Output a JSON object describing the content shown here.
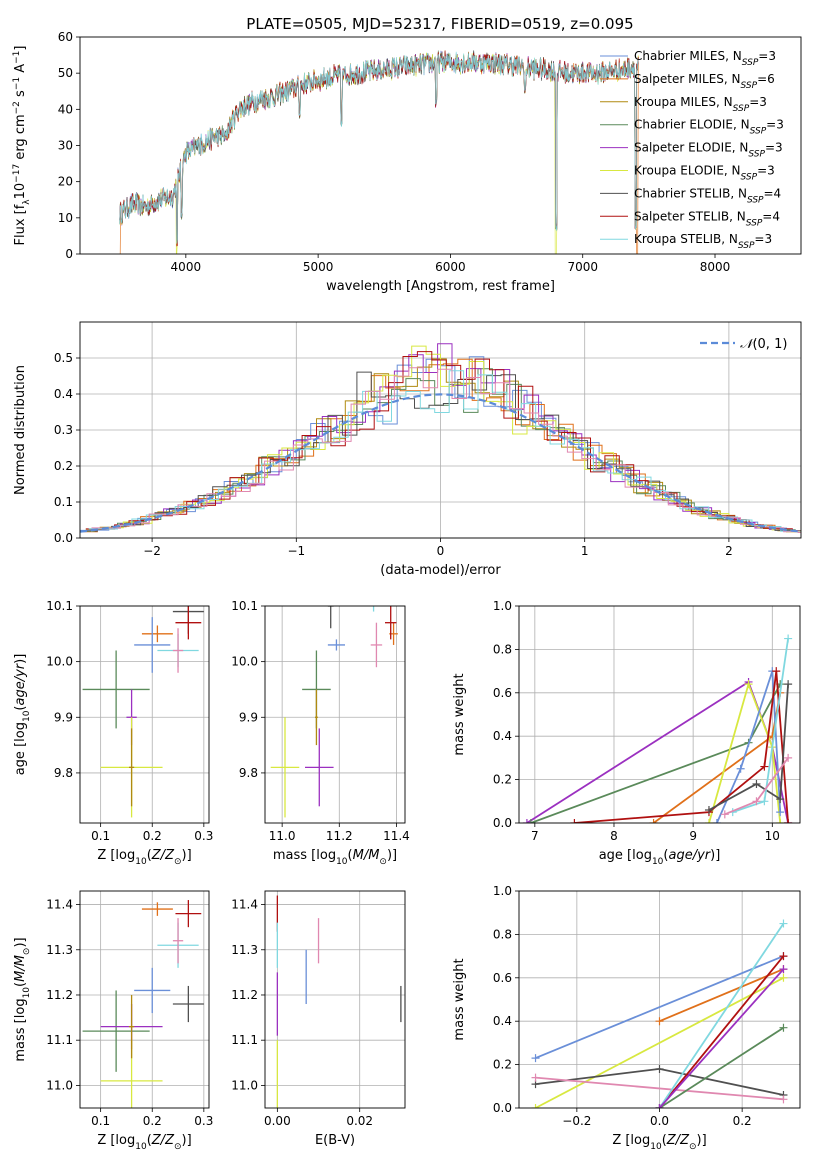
{
  "figure_title": "PLATE=0505, MJD=52317, FIBERID=0519, z=0.095",
  "colors": {
    "Chabrier MILES": "#6a8fd8",
    "Salpeter MILES": "#e0701a",
    "Kroupa MILES": "#b08a10",
    "Chabrier ELODIE": "#5a8a5a",
    "Salpeter ELODIE": "#9b30c0",
    "Kroupa ELODIE": "#d8e840",
    "Chabrier STELIB": "#505050",
    "Salpeter STELIB": "#b01010",
    "Kroupa STELIB": "#80d8e0",
    "pink": "#e088b0",
    "normal": "#5b8bd8"
  },
  "chart_data": [
    {
      "type": "line",
      "id": "spectrum",
      "xlabel": "wavelength [Angstrom, rest frame]",
      "ylabel": "Flux [f_λ 10^-17 erg cm^-2 s^-1 A^-1]",
      "xlim": [
        3200,
        8650
      ],
      "ylim": [
        0,
        60
      ],
      "xticks": [
        4000,
        5000,
        6000,
        7000,
        8000
      ],
      "yticks": [
        0,
        10,
        20,
        30,
        40,
        50,
        60
      ],
      "grid": false,
      "legend_position": "top-right",
      "legend": [
        "Chabrier MILES, N_SSP=3",
        "Salpeter MILES, N_SSP=6",
        "Kroupa MILES, N_SSP=3",
        "Chabrier ELODIE, N_SSP=3",
        "Salpeter ELODIE, N_SSP=3",
        "Kroupa ELODIE, N_SSP=3",
        "Chabrier STELIB, N_SSP=4",
        "Salpeter STELIB, N_SSP=4",
        "Kroupa STELIB, N_SSP=3"
      ],
      "continuum": [
        [
          3500,
          11
        ],
        [
          3600,
          14
        ],
        [
          3700,
          13
        ],
        [
          3800,
          15
        ],
        [
          3900,
          16
        ],
        [
          4000,
          28
        ],
        [
          4100,
          30
        ],
        [
          4200,
          32
        ],
        [
          4300,
          33
        ],
        [
          4400,
          40
        ],
        [
          4500,
          42
        ],
        [
          4700,
          44
        ],
        [
          4900,
          47
        ],
        [
          5100,
          49
        ],
        [
          5300,
          50
        ],
        [
          5500,
          51
        ],
        [
          5700,
          52
        ],
        [
          5900,
          53
        ],
        [
          6100,
          53
        ],
        [
          6300,
          53
        ],
        [
          6500,
          52
        ],
        [
          6700,
          51
        ],
        [
          6900,
          50
        ],
        [
          7100,
          50
        ],
        [
          7300,
          51
        ],
        [
          7400,
          52
        ]
      ],
      "dips": [
        [
          3934,
          0
        ],
        [
          3969,
          10
        ],
        [
          4102,
          28
        ],
        [
          4300,
          32
        ],
        [
          4861,
          38
        ],
        [
          5175,
          35
        ],
        [
          5893,
          41
        ],
        [
          6563,
          44
        ],
        [
          6800,
          0
        ],
        [
          7400,
          0
        ]
      ]
    },
    {
      "type": "histogram",
      "id": "residuals",
      "xlabel": "(data-model)/error",
      "ylabel": "Normed distribution",
      "xlim": [
        -2.5,
        2.5
      ],
      "ylim": [
        0,
        0.6
      ],
      "xticks": [
        -2,
        -1,
        0,
        1,
        2
      ],
      "yticks": [
        0.0,
        0.1,
        0.2,
        0.3,
        0.4,
        0.5
      ],
      "grid": true,
      "legend_position": "top-right",
      "legend": [
        "N(0,1)"
      ],
      "bin_width": 0.1
    },
    {
      "type": "scatter",
      "id": "age_vs_Z",
      "xlabel": "Z [log10(Z/Z⊙)]",
      "ylabel": "age  [log10(age/yr)]",
      "xlim": [
        0.06,
        0.31
      ],
      "ylim": [
        9.71,
        10.1
      ],
      "xticks": [
        0.1,
        0.2,
        0.3
      ],
      "yticks": [
        9.8,
        9.9,
        10.0,
        10.1
      ],
      "points": [
        {
          "c": "Salpeter MILES",
          "x": 0.21,
          "y": 10.05,
          "ex": 0.03,
          "ey": 0.015
        },
        {
          "c": "Kroupa STELIB",
          "x": 0.25,
          "y": 10.02,
          "ex": 0.04,
          "ey": 0.03
        },
        {
          "c": "Chabrier STELIB",
          "x": 0.27,
          "y": 10.09,
          "ex": 0.03,
          "ey": 0.04
        },
        {
          "c": "Salpeter STELIB",
          "x": 0.27,
          "y": 10.07,
          "ex": 0.025,
          "ey": 0.03
        },
        {
          "c": "pink",
          "x": 0.25,
          "y": 10.02,
          "ex": 0.01,
          "ey": 0.04
        },
        {
          "c": "Chabrier MILES",
          "x": 0.2,
          "y": 10.03,
          "ex": 0.035,
          "ey": 0.05
        },
        {
          "c": "Chabrier ELODIE",
          "x": 0.13,
          "y": 9.95,
          "ex": 0.065,
          "ey": 0.07
        },
        {
          "c": "Salpeter ELODIE",
          "x": 0.16,
          "y": 9.9,
          "ex": 0.01,
          "ey": 0.05
        },
        {
          "c": "Kroupa ELODIE",
          "x": 0.16,
          "y": 9.81,
          "ex": 0.06,
          "ey": 0.09
        },
        {
          "c": "Kroupa MILES",
          "x": 0.16,
          "y": 9.81,
          "ex": 0.005,
          "ey": 0.07
        }
      ]
    },
    {
      "type": "scatter",
      "id": "age_vs_mass",
      "xlabel": "mass [log10(M/M⊙)]",
      "ylabel": "",
      "xlim": [
        10.94,
        11.43
      ],
      "ylim": [
        9.71,
        10.1
      ],
      "xticks": [
        11.0,
        11.2,
        11.4
      ],
      "yticks": [
        9.8,
        9.9,
        10.0,
        10.1
      ],
      "points": [
        {
          "c": "Salpeter MILES",
          "x": 11.39,
          "y": 10.05,
          "ex": 0.015,
          "ey": 0.02
        },
        {
          "c": "Kroupa STELIB",
          "x": 11.32,
          "y": 10.12,
          "ex": 0.03,
          "ey": 0.03
        },
        {
          "c": "Chabrier STELIB",
          "x": 11.17,
          "y": 10.1,
          "ex": 0.01,
          "ey": 0.04
        },
        {
          "c": "Salpeter STELIB",
          "x": 11.38,
          "y": 10.07,
          "ex": 0.02,
          "ey": 0.03
        },
        {
          "c": "pink",
          "x": 11.33,
          "y": 10.03,
          "ex": 0.02,
          "ey": 0.04
        },
        {
          "c": "Chabrier MILES",
          "x": 11.19,
          "y": 10.03,
          "ex": 0.03,
          "ey": 0.01
        },
        {
          "c": "Chabrier ELODIE",
          "x": 11.12,
          "y": 9.95,
          "ex": 0.05,
          "ey": 0.07
        },
        {
          "c": "Salpeter ELODIE",
          "x": 11.13,
          "y": 9.81,
          "ex": 0.05,
          "ey": 0.07
        },
        {
          "c": "Kroupa ELODIE",
          "x": 11.01,
          "y": 9.81,
          "ex": 0.05,
          "ey": 0.09
        },
        {
          "c": "Kroupa MILES",
          "x": 11.12,
          "y": 9.9,
          "ex": 0.005,
          "ey": 0.05
        }
      ]
    },
    {
      "type": "line",
      "id": "weight_vs_age",
      "xlabel": "age  [log10(age/yr)]",
      "ylabel": "mass weight",
      "xlim": [
        6.8,
        10.35
      ],
      "ylim": [
        0,
        1
      ],
      "xticks": [
        7,
        8,
        9,
        10
      ],
      "yticks": [
        0.0,
        0.2,
        0.4,
        0.6,
        0.8,
        1.0
      ],
      "grid": true,
      "series": [
        {
          "c": "Salpeter ELODIE",
          "x": [
            6.9,
            9.7,
            10.0,
            10.2
          ],
          "y": [
            0.0,
            0.65,
            0.35,
            0.0
          ]
        },
        {
          "c": "Chabrier ELODIE",
          "x": [
            6.95,
            9.7,
            10.1
          ],
          "y": [
            0.0,
            0.37,
            0.64
          ]
        },
        {
          "c": "Salpeter MILES",
          "x": [
            8.5,
            10.0,
            10.1
          ],
          "y": [
            0.0,
            0.4,
            0.6
          ]
        },
        {
          "c": "Kroupa ELODIE",
          "x": [
            9.2,
            9.7,
            10.0,
            10.1
          ],
          "y": [
            0.0,
            0.64,
            0.35,
            0.0
          ]
        },
        {
          "c": "Chabrier MILES",
          "x": [
            9.3,
            9.6,
            10.0,
            10.1
          ],
          "y": [
            0.0,
            0.25,
            0.7,
            0.05
          ]
        },
        {
          "c": "Salpeter STELIB",
          "x": [
            7.5,
            9.2,
            9.9,
            10.05,
            10.2
          ],
          "y": [
            0.0,
            0.05,
            0.26,
            0.7,
            0.0
          ]
        },
        {
          "c": "Chabrier STELIB",
          "x": [
            9.2,
            9.8,
            10.1,
            10.2
          ],
          "y": [
            0.06,
            0.18,
            0.11,
            0.64
          ]
        },
        {
          "c": "Kroupa STELIB",
          "x": [
            9.5,
            9.9,
            10.2
          ],
          "y": [
            0.05,
            0.1,
            0.85
          ]
        },
        {
          "c": "pink",
          "x": [
            9.4,
            9.8,
            10.2
          ],
          "y": [
            0.04,
            0.1,
            0.3
          ]
        }
      ]
    },
    {
      "type": "scatter",
      "id": "mass_vs_Z",
      "xlabel": "Z [log10(Z/Z⊙)]",
      "ylabel": "mass [log10(M/M⊙)]",
      "xlim": [
        0.06,
        0.31
      ],
      "ylim": [
        10.95,
        11.43
      ],
      "xticks": [
        0.1,
        0.2,
        0.3
      ],
      "yticks": [
        11.0,
        11.1,
        11.2,
        11.3,
        11.4
      ],
      "points": [
        {
          "c": "Salpeter MILES",
          "x": 0.21,
          "y": 11.39,
          "ex": 0.03,
          "ey": 0.015
        },
        {
          "c": "Salpeter STELIB",
          "x": 0.27,
          "y": 11.38,
          "ex": 0.025,
          "ey": 0.03
        },
        {
          "c": "Kroupa STELIB",
          "x": 0.25,
          "y": 11.31,
          "ex": 0.04,
          "ey": 0.05
        },
        {
          "c": "pink",
          "x": 0.25,
          "y": 11.32,
          "ex": 0.01,
          "ey": 0.05
        },
        {
          "c": "Chabrier MILES",
          "x": 0.2,
          "y": 11.21,
          "ex": 0.035,
          "ey": 0.05
        },
        {
          "c": "Chabrier STELIB",
          "x": 0.27,
          "y": 11.18,
          "ex": 0.03,
          "ey": 0.04
        },
        {
          "c": "Chabrier ELODIE",
          "x": 0.13,
          "y": 11.12,
          "ex": 0.065,
          "ey": 0.09
        },
        {
          "c": "Salpeter ELODIE",
          "x": 0.16,
          "y": 11.13,
          "ex": 0.06,
          "ey": 0.05
        },
        {
          "c": "Kroupa ELODIE",
          "x": 0.16,
          "y": 11.01,
          "ex": 0.06,
          "ey": 0.09
        },
        {
          "c": "Kroupa MILES",
          "x": 0.16,
          "y": 11.13,
          "ex": 0.005,
          "ey": 0.07
        }
      ]
    },
    {
      "type": "scatter",
      "id": "mass_vs_EBV",
      "xlabel": "E(B-V)",
      "ylabel": "",
      "xlim": [
        -0.003,
        0.031
      ],
      "ylim": [
        10.95,
        11.43
      ],
      "xticks": [
        0.0,
        0.02
      ],
      "yticks": [
        11.0,
        11.1,
        11.2,
        11.3,
        11.4
      ],
      "points": [
        {
          "c": "Salpeter STELIB",
          "x": 0.0,
          "y": 11.38,
          "ex": 0,
          "ey": 0.04
        },
        {
          "c": "Kroupa STELIB",
          "x": 0.0,
          "y": 11.31,
          "ex": 0,
          "ey": 0.05
        },
        {
          "c": "Salpeter ELODIE",
          "x": 0.0,
          "y": 11.18,
          "ex": 0,
          "ey": 0.07
        },
        {
          "c": "Kroupa ELODIE",
          "x": 0.0,
          "y": 11.01,
          "ex": 0,
          "ey": 0.09
        },
        {
          "c": "pink",
          "x": 0.01,
          "y": 11.32,
          "ex": 0,
          "ey": 0.05
        },
        {
          "c": "Chabrier MILES",
          "x": 0.007,
          "y": 11.24,
          "ex": 0,
          "ey": 0.06
        },
        {
          "c": "Chabrier STELIB",
          "x": 0.03,
          "y": 11.18,
          "ex": 0,
          "ey": 0.04
        }
      ]
    },
    {
      "type": "line",
      "id": "weight_vs_Z",
      "xlabel": "Z [log10(Z/Z⊙)]",
      "ylabel": "mass weight",
      "xlim": [
        -0.34,
        0.34
      ],
      "ylim": [
        0,
        1
      ],
      "xticks": [
        -0.2,
        0.0,
        0.2
      ],
      "yticks": [
        0.0,
        0.2,
        0.4,
        0.6,
        0.8,
        1.0
      ],
      "grid": true,
      "series": [
        {
          "c": "Chabrier MILES",
          "x": [
            -0.3,
            0.3
          ],
          "y": [
            0.23,
            0.7
          ]
        },
        {
          "c": "Salpeter MILES",
          "x": [
            0.0,
            0.3
          ],
          "y": [
            0.4,
            0.64
          ]
        },
        {
          "c": "Kroupa ELODIE",
          "x": [
            -0.3,
            0.3
          ],
          "y": [
            0.0,
            0.6
          ]
        },
        {
          "c": "Chabrier STELIB",
          "x": [
            -0.3,
            0.0,
            0.3
          ],
          "y": [
            0.11,
            0.18,
            0.06
          ]
        },
        {
          "c": "pink",
          "x": [
            -0.3,
            0.3
          ],
          "y": [
            0.14,
            0.04
          ]
        },
        {
          "c": "Salpeter STELIB",
          "x": [
            0.0,
            0.3
          ],
          "y": [
            0.0,
            0.7
          ]
        },
        {
          "c": "Kroupa STELIB",
          "x": [
            0.0,
            0.3
          ],
          "y": [
            0.0,
            0.85
          ]
        },
        {
          "c": "Chabrier ELODIE",
          "x": [
            0.0,
            0.3
          ],
          "y": [
            0.0,
            0.37
          ]
        },
        {
          "c": "Salpeter ELODIE",
          "x": [
            0.0,
            0.3
          ],
          "y": [
            0.0,
            0.64
          ]
        }
      ]
    }
  ]
}
